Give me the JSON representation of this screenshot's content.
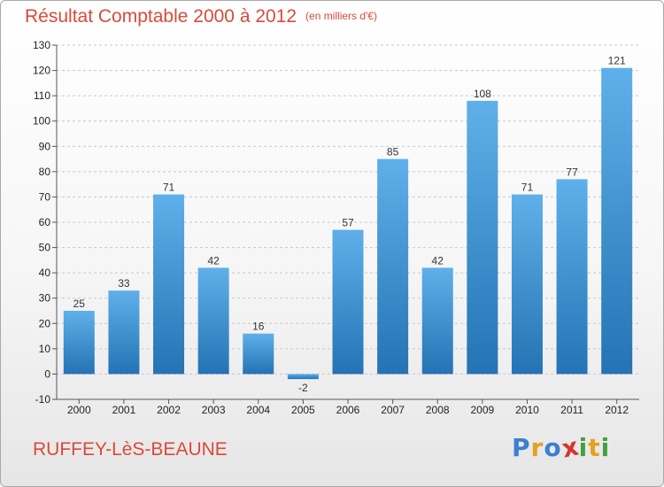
{
  "header": {
    "title": "Résultat Comptable 2000 à 2012",
    "unit": "(en milliers d'€)"
  },
  "footer": {
    "commune": "RUFFEY-LèS-BEAUNE",
    "brand": "Proxiti"
  },
  "colors": {
    "title": "#d94a3a",
    "bar_top": "#5fb0ea",
    "bar_bottom": "#2473b4",
    "logo_letters": [
      "#3b7fd0",
      "#e8a020",
      "#3b7fd0",
      "#d9342b",
      "#3fa33f",
      "#e8a020",
      "#3fa33f"
    ]
  },
  "chart_data": {
    "type": "bar",
    "title": "Résultat Comptable 2000 à 2012",
    "subtitle": "(en milliers d'€)",
    "xlabel": "",
    "ylabel": "",
    "categories": [
      "2000",
      "2001",
      "2002",
      "2003",
      "2004",
      "2005",
      "2006",
      "2007",
      "2008",
      "2009",
      "2010",
      "2011",
      "2012"
    ],
    "values": [
      25,
      33,
      71,
      42,
      16,
      -2,
      57,
      85,
      42,
      108,
      71,
      77,
      121
    ],
    "data_labels": [
      "25",
      "33",
      "71",
      "42",
      "16",
      "-2",
      "57",
      "85",
      "42",
      "108",
      "71",
      "77",
      "121"
    ],
    "ylim": [
      -10,
      130
    ],
    "yticks": [
      -10,
      0,
      10,
      20,
      30,
      40,
      50,
      60,
      70,
      80,
      90,
      100,
      110,
      120,
      130
    ],
    "grid": "horizontal-dashed",
    "legend": "none"
  }
}
